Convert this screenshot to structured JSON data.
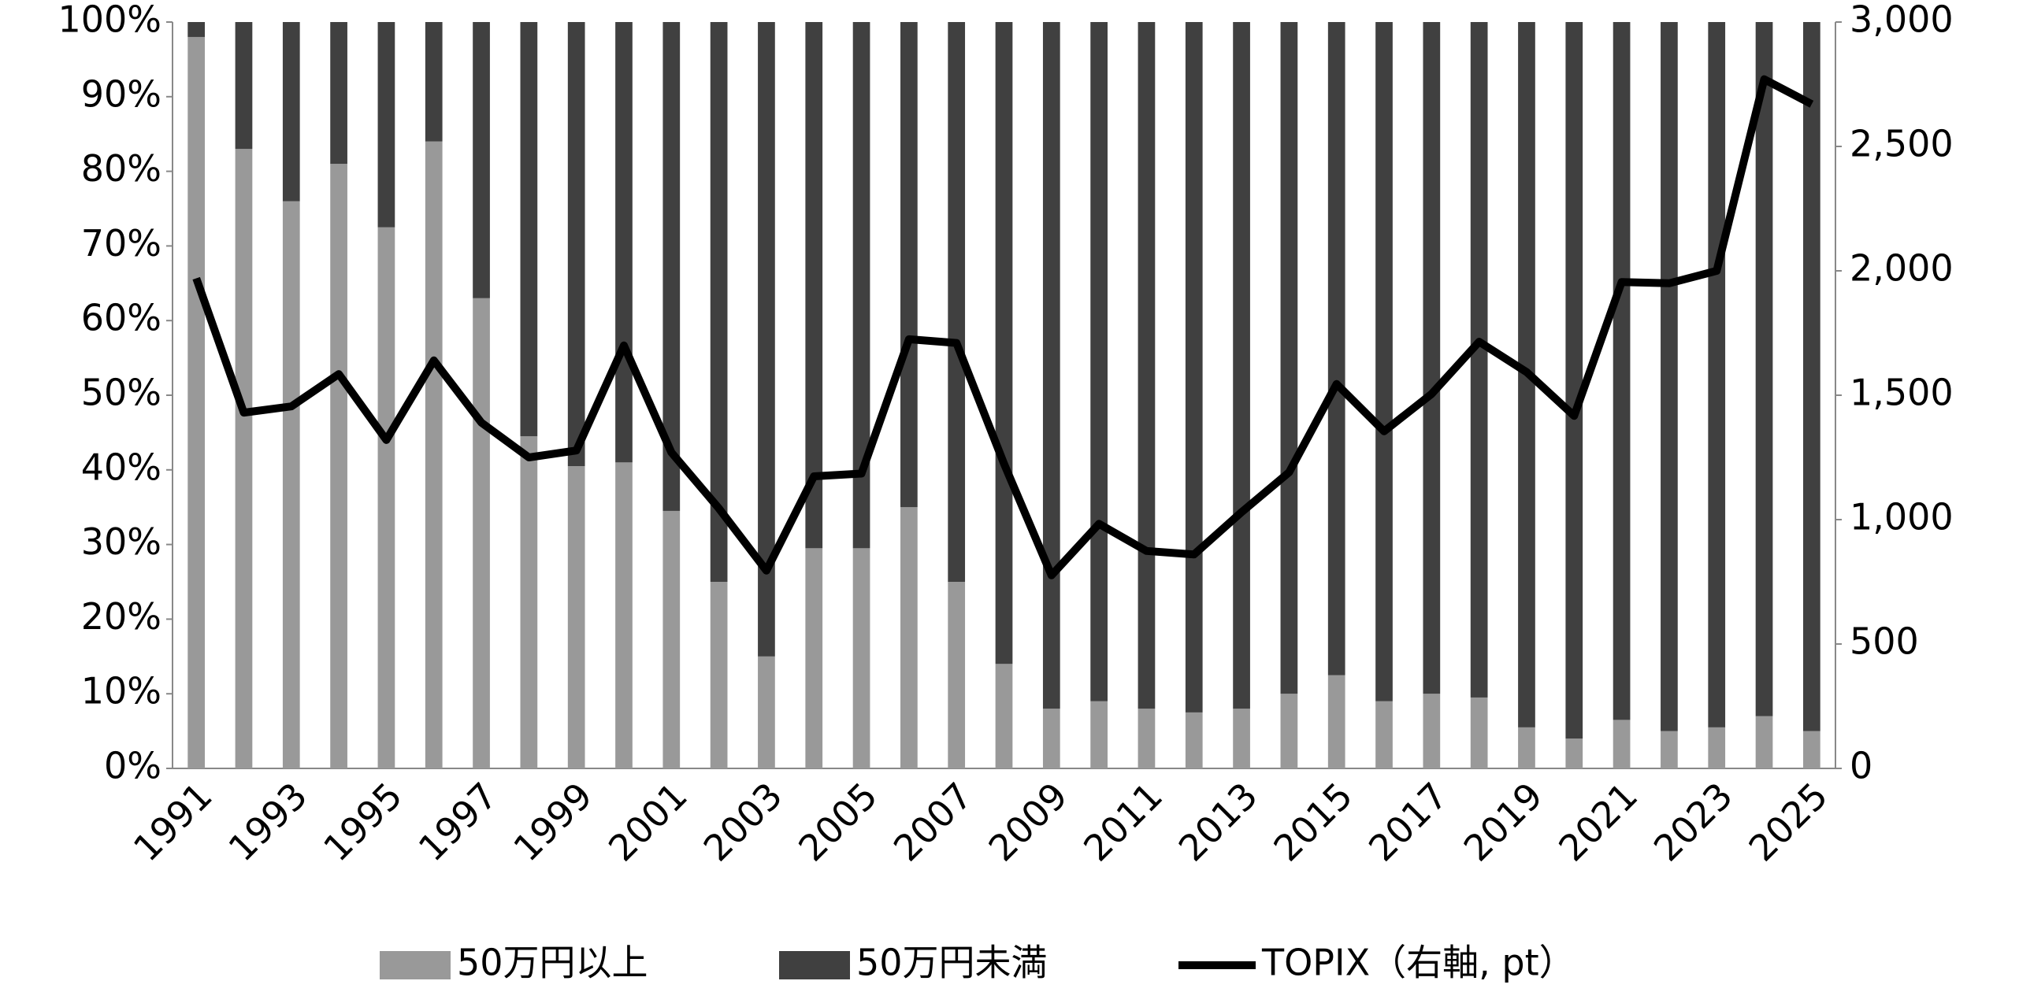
{
  "chart_data": {
    "type": "bar",
    "stacked": true,
    "categories": [
      "1991",
      null,
      "1993",
      null,
      "1995",
      null,
      "1997",
      null,
      "1999",
      null,
      "2001",
      null,
      "2003",
      null,
      "2005",
      null,
      "2007",
      null,
      "2009",
      null,
      "2011",
      null,
      "2013",
      null,
      "2015",
      null,
      "2017",
      null,
      "2019",
      null,
      "2021",
      null,
      "2023",
      null,
      "2025"
    ],
    "series": [
      {
        "name": "50万円以上",
        "color": "#999999",
        "values": [
          98,
          83,
          76,
          81,
          72.5,
          84,
          63,
          44.5,
          40.5,
          41,
          34.5,
          25,
          15,
          29.5,
          29.5,
          35,
          25,
          14,
          8,
          9,
          8,
          7.5,
          8,
          10,
          12.5,
          9,
          10,
          9.5,
          5.5,
          4,
          6.5,
          5,
          5.5,
          7,
          5
        ]
      },
      {
        "name": "50万円未満",
        "color": "#404040",
        "values": [
          2,
          17,
          24,
          19,
          27.5,
          16,
          37,
          55.5,
          59.5,
          59,
          65.5,
          75,
          85,
          70.5,
          70.5,
          65,
          75,
          86,
          92,
          91,
          92,
          92.5,
          92,
          90,
          87.5,
          91,
          90,
          90.5,
          94.5,
          96,
          93.5,
          95,
          94.5,
          93,
          95
        ]
      },
      {
        "name": "TOPIX（右軸, pt）",
        "type": "line",
        "axis": "y2",
        "color": "#000000",
        "values": [
          1970,
          1430,
          1455,
          1585,
          1320,
          1640,
          1390,
          1250,
          1278,
          1700,
          1270,
          1045,
          795,
          1174,
          1185,
          1725,
          1710,
          1225,
          776,
          983,
          874,
          860,
          1030,
          1190,
          1545,
          1355,
          1505,
          1715,
          1593,
          1417,
          1955,
          1950,
          2000,
          2770,
          2670
        ]
      }
    ],
    "ylim": [
      0,
      100
    ],
    "yticks": [
      {
        "value": 0,
        "label": "0%"
      },
      {
        "value": 10,
        "label": "10%"
      },
      {
        "value": 20,
        "label": "20%"
      },
      {
        "value": 30,
        "label": "30%"
      },
      {
        "value": 40,
        "label": "40%"
      },
      {
        "value": 50,
        "label": "50%"
      },
      {
        "value": 60,
        "label": "60%"
      },
      {
        "value": 70,
        "label": "70%"
      },
      {
        "value": 80,
        "label": "80%"
      },
      {
        "value": 90,
        "label": "90%"
      },
      {
        "value": 100,
        "label": "100%"
      }
    ],
    "y2lim": [
      0,
      3000
    ],
    "y2ticks": [
      0,
      500,
      {
        "value": 1000,
        "label": "1,000"
      },
      {
        "value": 1500,
        "label": "1,500"
      },
      {
        "value": 2000,
        "label": "2,000"
      },
      {
        "value": 2500,
        "label": "2,500"
      },
      {
        "value": 3000,
        "label": "3,000"
      }
    ],
    "grid": false
  }
}
